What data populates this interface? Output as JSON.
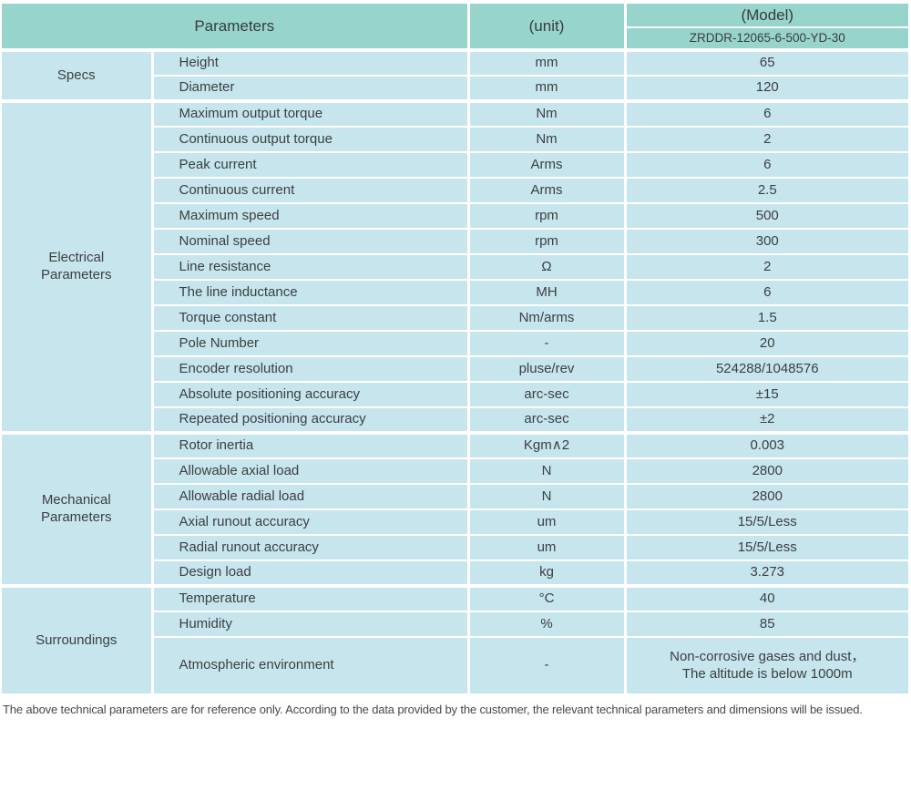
{
  "table": {
    "header": {
      "parameters": "Parameters",
      "unit": "(unit)",
      "model": "(Model)",
      "model_number": "ZRDDR-12065-6-500-YD-30"
    },
    "sections": [
      {
        "category": "Specs",
        "rows": [
          {
            "param": "Height",
            "unit": "mm",
            "value": "65"
          },
          {
            "param": "Diameter",
            "unit": "mm",
            "value": "120"
          }
        ]
      },
      {
        "category": "Electrical Parameters",
        "rows": [
          {
            "param": "Maximum output torque",
            "unit": "Nm",
            "value": "6"
          },
          {
            "param": "Continuous output torque",
            "unit": "Nm",
            "value": "2"
          },
          {
            "param": "Peak current",
            "unit": "Arms",
            "value": "6"
          },
          {
            "param": "Continuous current",
            "unit": "Arms",
            "value": "2.5"
          },
          {
            "param": "Maximum speed",
            "unit": "rpm",
            "value": "500"
          },
          {
            "param": "Nominal speed",
            "unit": "rpm",
            "value": "300"
          },
          {
            "param": "Line resistance",
            "unit": "Ω",
            "value": "2"
          },
          {
            "param": "The line inductance",
            "unit": "MH",
            "value": "6"
          },
          {
            "param": "Torque constant",
            "unit": "Nm/arms",
            "value": "1.5"
          },
          {
            "param": "Pole Number",
            "unit": "-",
            "value": "20"
          },
          {
            "param": "Encoder resolution",
            "unit": "pluse/rev",
            "value": "524288/1048576"
          },
          {
            "param": "Absolute positioning accuracy",
            "unit": "arc-sec",
            "value": "±15"
          },
          {
            "param": "Repeated positioning accuracy",
            "unit": "arc-sec",
            "value": "±2"
          }
        ]
      },
      {
        "category": "Mechanical Parameters",
        "rows": [
          {
            "param": "Rotor inertia",
            "unit": "Kgm∧2",
            "value": "0.003"
          },
          {
            "param": "Allowable axial load",
            "unit": "N",
            "value": "2800"
          },
          {
            "param": "Allowable radial load",
            "unit": "N",
            "value": "2800"
          },
          {
            "param": "Axial runout accuracy",
            "unit": "um",
            "value": "15/5/Less"
          },
          {
            "param": "Radial runout accuracy",
            "unit": "um",
            "value": "15/5/Less"
          },
          {
            "param": "Design load",
            "unit": "kg",
            "value": "3.273"
          }
        ]
      },
      {
        "category": "Surroundings",
        "rows": [
          {
            "param": "Temperature",
            "unit": "°C",
            "value": "40"
          },
          {
            "param": "Humidity",
            "unit": "%",
            "value": "85"
          },
          {
            "param": "Atmospheric environment",
            "unit": "-",
            "value_lines": [
              "Non-corrosive gases and dust，",
              "The altitude is below 1000m"
            ],
            "tall": true
          }
        ]
      }
    ]
  },
  "footer": {
    "note": "The above technical parameters are for reference only. According to the data provided by the customer, the relevant technical parameters and dimensions will be issued."
  },
  "colors": {
    "header_bg": "#97d4cc",
    "row_bg": "#c6e5ec",
    "grid": "#ffffff",
    "text": "#3c4043",
    "footer_text": "#474747"
  }
}
